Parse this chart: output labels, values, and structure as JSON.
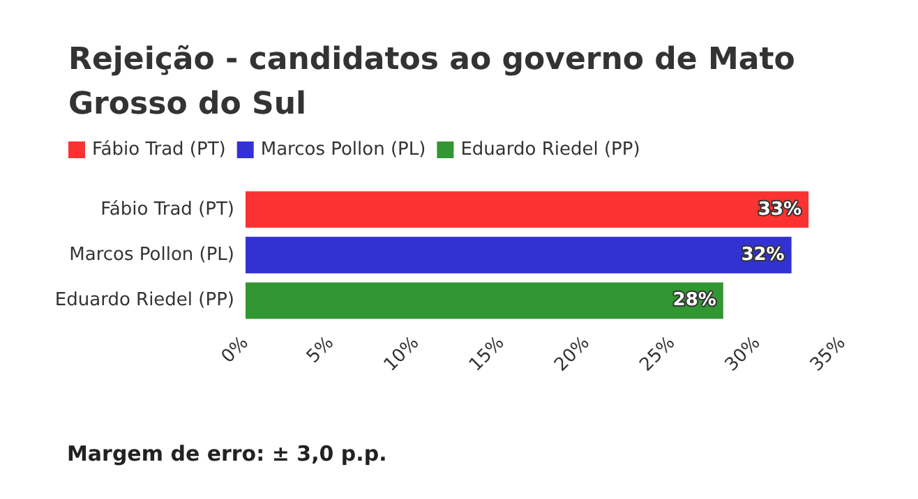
{
  "chart_data": {
    "type": "bar",
    "orientation": "horizontal",
    "stacked": true,
    "title": "Rejeição - candidatos ao governo de Mato Grosso do Sul",
    "categories": [
      "Fábio Trad (PT)",
      "Marcos Pollon (PL)",
      "Eduardo Riedel (PP)"
    ],
    "series": [
      {
        "name": "Fábio Trad (PT)",
        "color": "#fa3232",
        "values": [
          33,
          null,
          null
        ],
        "value_labels": [
          "33%",
          null,
          null
        ]
      },
      {
        "name": "Marcos Pollon (PL)",
        "color": "#3232d2",
        "values": [
          null,
          32,
          null
        ],
        "value_labels": [
          null,
          "32%",
          null
        ]
      },
      {
        "name": "Eduardo Riedel (PP)",
        "color": "#329632",
        "values": [
          null,
          null,
          28
        ],
        "value_labels": [
          null,
          null,
          "28%"
        ]
      }
    ],
    "xlim": [
      0,
      35
    ],
    "xticks": [
      {
        "value": 0,
        "label": "0%"
      },
      {
        "value": 5,
        "label": "5%"
      },
      {
        "value": 10,
        "label": "10%"
      },
      {
        "value": 15,
        "label": "15%"
      },
      {
        "value": 20,
        "label": "20%"
      },
      {
        "value": 25,
        "label": "25%"
      },
      {
        "value": 30,
        "label": "30%"
      },
      {
        "value": 35,
        "label": "35%"
      }
    ],
    "grid": false,
    "legend": "top left",
    "annotations": [
      "Margem de erro: ± 3,0 p.p."
    ]
  }
}
